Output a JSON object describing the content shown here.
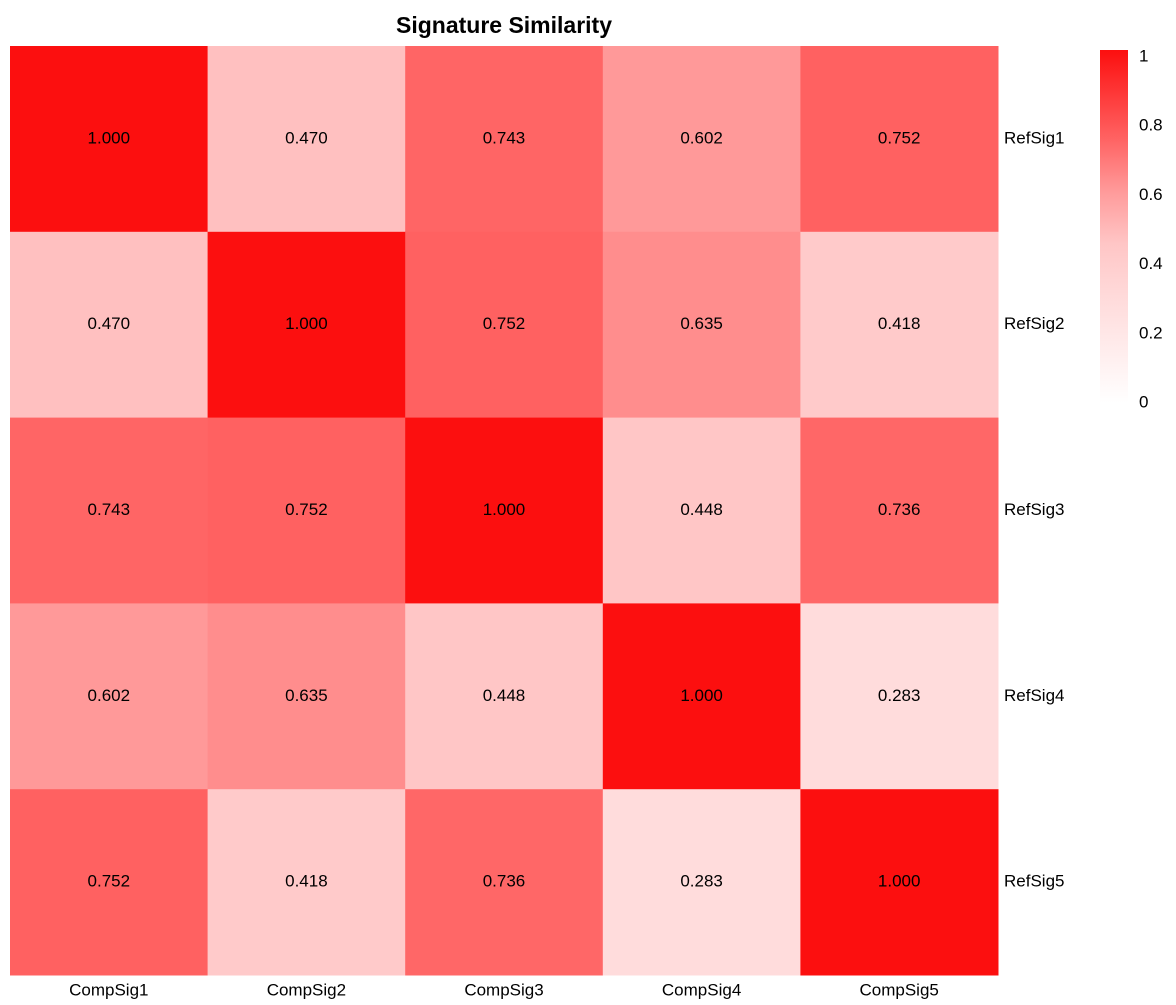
{
  "chart_data": {
    "type": "heatmap",
    "title": "Signature Similarity",
    "x": [
      "CompSig1",
      "CompSig2",
      "CompSig3",
      "CompSig4",
      "CompSig5"
    ],
    "y": [
      "RefSig1",
      "RefSig2",
      "RefSig3",
      "RefSig4",
      "RefSig5"
    ],
    "values": [
      [
        1.0,
        0.47,
        0.743,
        0.602,
        0.752
      ],
      [
        0.47,
        1.0,
        0.752,
        0.635,
        0.418
      ],
      [
        0.743,
        0.752,
        1.0,
        0.448,
        0.736
      ],
      [
        0.602,
        0.635,
        0.448,
        1.0,
        0.283
      ],
      [
        0.752,
        0.418,
        0.736,
        0.283,
        1.0
      ]
    ],
    "value_labels": [
      [
        "1.000",
        "0.470",
        "0.743",
        "0.602",
        "0.752"
      ],
      [
        "0.470",
        "1.000",
        "0.752",
        "0.635",
        "0.418"
      ],
      [
        "0.743",
        "0.752",
        "1.000",
        "0.448",
        "0.736"
      ],
      [
        "0.602",
        "0.635",
        "0.448",
        "1.000",
        "0.283"
      ],
      [
        "0.752",
        "0.418",
        "0.736",
        "0.283",
        "1.000"
      ]
    ],
    "colorscale": [
      [
        0,
        "#ffffff"
      ],
      [
        0.3,
        "#ffdada"
      ],
      [
        0.45,
        "#ffc6c6"
      ],
      [
        0.6,
        "#ff9a9a"
      ],
      [
        0.75,
        "#ff6262"
      ],
      [
        1,
        "#fc0f0f"
      ]
    ],
    "clim": [
      0,
      1
    ],
    "cticks": [
      0,
      0.2,
      0.4,
      0.6,
      0.8,
      1
    ]
  }
}
